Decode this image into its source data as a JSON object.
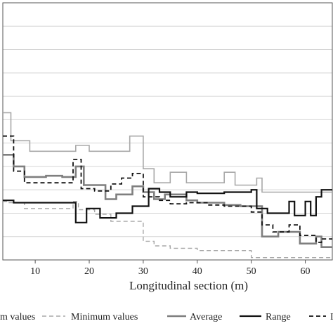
{
  "chart_data": {
    "type": "line",
    "xlabel": "Longitudinal section (m)",
    "ylabel": "",
    "xlim": [
      4,
      65
    ],
    "ylim": [
      0,
      11
    ],
    "grid": true,
    "legend_position": "bottom",
    "x_ticks": [
      10,
      20,
      30,
      40,
      50,
      60
    ],
    "y_ticks": [
      1,
      2,
      3,
      4,
      5,
      6,
      7,
      8,
      9,
      10
    ],
    "series": [
      {
        "name": "Maximum values",
        "legend_text": "m values",
        "style": "solid",
        "color": "#a8a8a8",
        "width": 1.6,
        "points": [
          [
            4,
            6.3
          ],
          [
            5.5,
            6.3
          ],
          [
            5.5,
            5.1
          ],
          [
            9,
            5.1
          ],
          [
            9,
            4.65
          ],
          [
            17.5,
            4.65
          ],
          [
            17.5,
            4.9
          ],
          [
            20,
            4.9
          ],
          [
            20,
            4.65
          ],
          [
            27.5,
            4.65
          ],
          [
            27.5,
            5.3
          ],
          [
            30,
            5.3
          ],
          [
            30,
            3.9
          ],
          [
            32,
            3.9
          ],
          [
            32,
            3.3
          ],
          [
            35,
            3.3
          ],
          [
            35,
            3.75
          ],
          [
            38,
            3.75
          ],
          [
            38,
            3.3
          ],
          [
            45,
            3.3
          ],
          [
            45,
            3.75
          ],
          [
            47,
            3.75
          ],
          [
            47,
            3.2
          ],
          [
            51,
            3.2
          ],
          [
            51,
            3.5
          ],
          [
            52,
            3.5
          ],
          [
            52,
            2.9
          ],
          [
            65,
            2.9
          ]
        ]
      },
      {
        "name": "Minimum values",
        "style": "dashed",
        "color": "#a8a8a8",
        "width": 1.4,
        "points": [
          [
            4,
            2.5
          ],
          [
            5,
            2.5
          ],
          [
            5,
            2.45
          ],
          [
            8,
            2.45
          ],
          [
            8,
            2.2
          ],
          [
            17,
            2.2
          ],
          [
            17,
            2.5
          ],
          [
            18,
            2.5
          ],
          [
            18,
            2.15
          ],
          [
            21,
            2.15
          ],
          [
            21,
            1.95
          ],
          [
            24,
            1.95
          ],
          [
            24,
            1.65
          ],
          [
            30,
            1.65
          ],
          [
            30,
            0.8
          ],
          [
            32,
            0.8
          ],
          [
            32,
            0.6
          ],
          [
            35,
            0.6
          ],
          [
            35,
            0.5
          ],
          [
            40,
            0.5
          ],
          [
            40,
            0.4
          ],
          [
            50,
            0.4
          ],
          [
            50,
            0.1
          ],
          [
            65,
            0.1
          ]
        ]
      },
      {
        "name": "Average",
        "style": "solid",
        "color": "#7f7f7f",
        "width": 2.6,
        "points": [
          [
            4,
            4.5
          ],
          [
            6,
            4.5
          ],
          [
            6,
            4.0
          ],
          [
            8,
            4.0
          ],
          [
            8,
            3.55
          ],
          [
            12,
            3.55
          ],
          [
            12,
            3.6
          ],
          [
            15,
            3.6
          ],
          [
            15,
            3.55
          ],
          [
            17.5,
            3.55
          ],
          [
            17.5,
            4.0
          ],
          [
            19,
            4.0
          ],
          [
            19,
            3.2
          ],
          [
            23,
            3.2
          ],
          [
            23,
            2.6
          ],
          [
            25,
            2.6
          ],
          [
            25,
            2.8
          ],
          [
            28,
            2.8
          ],
          [
            28,
            3.15
          ],
          [
            30,
            3.15
          ],
          [
            30,
            2.9
          ],
          [
            32,
            2.9
          ],
          [
            32,
            2.6
          ],
          [
            34,
            2.6
          ],
          [
            34,
            2.8
          ],
          [
            38,
            2.8
          ],
          [
            38,
            2.55
          ],
          [
            40,
            2.55
          ],
          [
            40,
            2.45
          ],
          [
            45,
            2.45
          ],
          [
            45,
            2.35
          ],
          [
            48,
            2.35
          ],
          [
            48,
            2.3
          ],
          [
            52,
            2.3
          ],
          [
            52,
            1.0
          ],
          [
            55,
            1.0
          ],
          [
            55,
            1.2
          ],
          [
            59,
            1.2
          ],
          [
            59,
            0.7
          ],
          [
            62,
            0.7
          ],
          [
            62,
            1.0
          ],
          [
            63,
            1.0
          ],
          [
            63,
            0.55
          ],
          [
            65,
            0.55
          ]
        ]
      },
      {
        "name": "Range",
        "style": "solid",
        "color": "#111111",
        "width": 2.2,
        "points": [
          [
            4,
            2.55
          ],
          [
            6,
            2.55
          ],
          [
            6,
            2.45
          ],
          [
            17.5,
            2.45
          ],
          [
            17.5,
            1.6
          ],
          [
            19.5,
            1.6
          ],
          [
            19.5,
            2.2
          ],
          [
            22,
            2.2
          ],
          [
            22,
            1.8
          ],
          [
            25,
            1.8
          ],
          [
            25,
            2.0
          ],
          [
            28,
            2.0
          ],
          [
            28,
            2.3
          ],
          [
            31,
            2.3
          ],
          [
            31,
            3.05
          ],
          [
            33,
            3.05
          ],
          [
            33,
            2.9
          ],
          [
            35,
            2.9
          ],
          [
            35,
            2.7
          ],
          [
            38,
            2.7
          ],
          [
            38,
            2.9
          ],
          [
            40,
            2.9
          ],
          [
            40,
            2.85
          ],
          [
            45,
            2.85
          ],
          [
            45,
            2.9
          ],
          [
            50,
            2.9
          ],
          [
            50,
            3.0
          ],
          [
            51,
            3.0
          ],
          [
            51,
            2.2
          ],
          [
            53,
            2.2
          ],
          [
            53,
            2.0
          ],
          [
            57,
            2.0
          ],
          [
            57,
            2.5
          ],
          [
            58,
            2.5
          ],
          [
            58,
            1.9
          ],
          [
            60,
            1.9
          ],
          [
            60,
            2.5
          ],
          [
            61,
            2.5
          ],
          [
            61,
            1.9
          ],
          [
            62,
            1.9
          ],
          [
            62,
            2.7
          ],
          [
            63,
            2.7
          ],
          [
            63,
            3.0
          ],
          [
            65,
            3.0
          ]
        ]
      },
      {
        "name": "Standard deviation",
        "legend_text": "I",
        "style": "dashed",
        "color": "#111111",
        "width": 1.8,
        "points": [
          [
            4,
            5.3
          ],
          [
            6,
            5.3
          ],
          [
            6,
            3.8
          ],
          [
            8,
            3.8
          ],
          [
            8,
            3.3
          ],
          [
            17,
            3.3
          ],
          [
            17,
            4.3
          ],
          [
            18.5,
            4.3
          ],
          [
            18.5,
            3.05
          ],
          [
            21,
            3.05
          ],
          [
            21,
            2.95
          ],
          [
            24,
            2.95
          ],
          [
            24,
            3.25
          ],
          [
            26,
            3.25
          ],
          [
            26,
            3.5
          ],
          [
            28,
            3.5
          ],
          [
            28,
            3.7
          ],
          [
            30,
            3.7
          ],
          [
            30,
            2.7
          ],
          [
            33,
            2.7
          ],
          [
            33,
            2.55
          ],
          [
            35,
            2.55
          ],
          [
            35,
            2.4
          ],
          [
            38,
            2.4
          ],
          [
            38,
            2.45
          ],
          [
            42,
            2.45
          ],
          [
            42,
            2.35
          ],
          [
            45,
            2.35
          ],
          [
            45,
            2.3
          ],
          [
            50,
            2.3
          ],
          [
            50,
            2.05
          ],
          [
            52,
            2.05
          ],
          [
            52,
            1.5
          ],
          [
            54,
            1.5
          ],
          [
            54,
            1.2
          ],
          [
            57,
            1.2
          ],
          [
            57,
            1.5
          ],
          [
            59,
            1.5
          ],
          [
            59,
            1.05
          ],
          [
            62,
            1.05
          ],
          [
            62,
            0.75
          ],
          [
            63,
            0.75
          ],
          [
            63,
            0.9
          ],
          [
            65,
            0.9
          ]
        ]
      }
    ]
  }
}
